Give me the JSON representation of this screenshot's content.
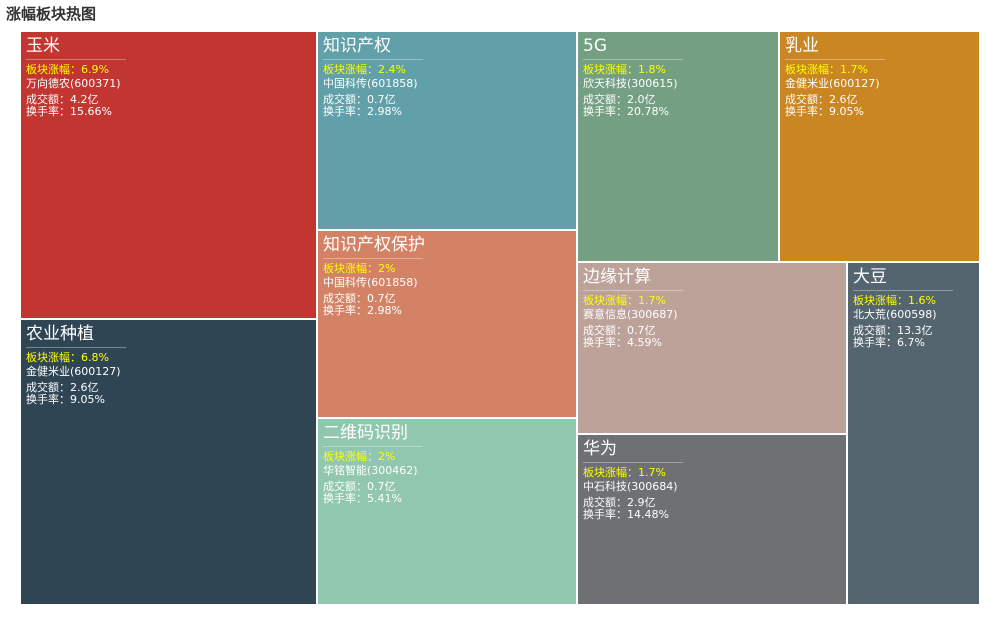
{
  "title": "涨幅板块热图",
  "chart_data": {
    "type": "treemap",
    "title": "涨幅板块热图",
    "labels": {
      "change_prefix": "板块涨幅：",
      "volume_prefix": "成交额：",
      "turnover_prefix": "换手率："
    },
    "sectors": [
      {
        "name": "玉米",
        "change": "6.9%",
        "stock": "万向德农(600371)",
        "volume": "4.2亿",
        "turnover": "15.66%",
        "color": "#c23531"
      },
      {
        "name": "农业种植",
        "change": "6.8%",
        "stock": "金健米业(600127)",
        "volume": "2.6亿",
        "turnover": "9.05%",
        "color": "#2f4554"
      },
      {
        "name": "知识产权",
        "change": "2.4%",
        "stock": "中国科传(601858)",
        "volume": "0.7亿",
        "turnover": "2.98%",
        "color": "#61a0a8"
      },
      {
        "name": "知识产权保护",
        "change": "2%",
        "stock": "中国科传(601858)",
        "volume": "0.7亿",
        "turnover": "2.98%",
        "color": "#d48265"
      },
      {
        "name": "二维码识别",
        "change": "2%",
        "stock": "华铭智能(300462)",
        "volume": "0.7亿",
        "turnover": "5.41%",
        "color": "#91c7ae"
      },
      {
        "name": "5G",
        "change": "1.8%",
        "stock": "欣天科技(300615)",
        "volume": "2.0亿",
        "turnover": "20.78%",
        "color": "#749f83"
      },
      {
        "name": "乳业",
        "change": "1.7%",
        "stock": "金健米业(600127)",
        "volume": "2.6亿",
        "turnover": "9.05%",
        "color": "#ca8622"
      },
      {
        "name": "边缘计算",
        "change": "1.7%",
        "stock": "赛意信息(300687)",
        "volume": "0.7亿",
        "turnover": "4.59%",
        "color": "#bda29a"
      },
      {
        "name": "华为",
        "change": "1.7%",
        "stock": "中石科技(300684)",
        "volume": "2.9亿",
        "turnover": "14.48%",
        "color": "#6e7074"
      },
      {
        "name": "大豆",
        "change": "1.6%",
        "stock": "北大荒(600598)",
        "volume": "13.3亿",
        "turnover": "6.7%",
        "color": "#546570"
      }
    ]
  }
}
